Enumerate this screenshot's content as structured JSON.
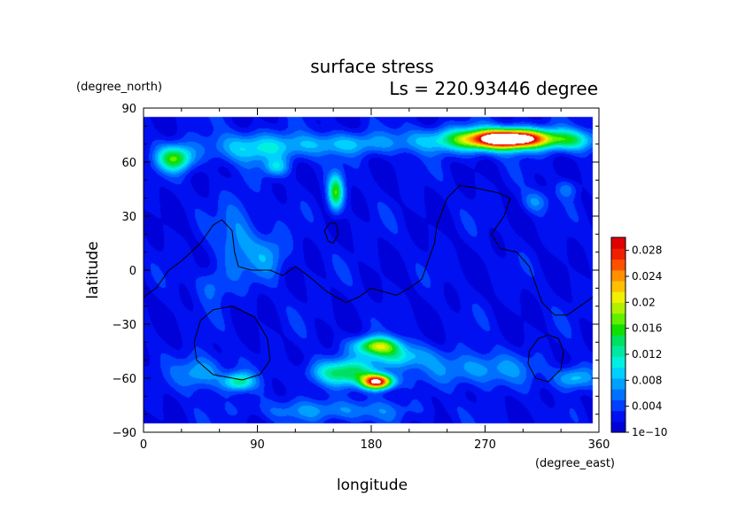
{
  "chart_data": {
    "type": "heatmap",
    "title": "surface stress",
    "subtitle": "Ls = 220.93446 degree",
    "xlabel": "longitude",
    "ylabel": "latitude",
    "x_unit": "(degree_east)",
    "y_unit": "(degree_north)",
    "xlim": [
      0,
      360
    ],
    "ylim": [
      -90,
      90
    ],
    "x_ticks": [
      0,
      90,
      180,
      270,
      360
    ],
    "y_ticks": [
      -90,
      -60,
      -30,
      0,
      30,
      60,
      90
    ],
    "x_tick_labels": [
      "0",
      "90",
      "180",
      "270",
      "360"
    ],
    "y_tick_labels": [
      "−90",
      "−60",
      "−30",
      "0",
      "30",
      "60",
      "90"
    ],
    "data_extent": {
      "lon": [
        0,
        355
      ],
      "lat": [
        -85,
        85
      ]
    },
    "background_value": 0.002,
    "features": [
      {
        "name": "north-polar-high",
        "lon": 290,
        "lat": 73,
        "slon": 32,
        "slat": 5,
        "amp": 0.03
      },
      {
        "name": "north-polar-band",
        "lon": 265,
        "lat": 72,
        "slon": 55,
        "slat": 7,
        "amp": 0.011
      },
      {
        "name": "north-polar-east",
        "lon": 340,
        "lat": 72,
        "slon": 18,
        "slat": 6,
        "amp": 0.008
      },
      {
        "name": "nw-patch",
        "lon": 25,
        "lat": 62,
        "slon": 14,
        "slat": 7,
        "amp": 0.014
      },
      {
        "name": "north-band-1",
        "lon": 90,
        "lat": 68,
        "slon": 40,
        "slat": 8,
        "amp": 0.008
      },
      {
        "name": "north-band-2",
        "lon": 160,
        "lat": 70,
        "slon": 40,
        "slat": 6,
        "amp": 0.006
      },
      {
        "name": "north-band-3",
        "lon": 105,
        "lat": 57,
        "slon": 10,
        "slat": 5,
        "amp": 0.007
      },
      {
        "name": "mid-north-streak",
        "lon": 152,
        "lat": 43,
        "slon": 6,
        "slat": 10,
        "amp": 0.014
      },
      {
        "name": "west-blob",
        "lon": 75,
        "lat": 18,
        "slon": 16,
        "slat": 22,
        "amp": 0.005
      },
      {
        "name": "equator-blob",
        "lon": 100,
        "lat": 8,
        "slon": 14,
        "slat": 12,
        "amp": 0.005
      },
      {
        "name": "equator-west",
        "lon": 55,
        "lat": -8,
        "slon": 12,
        "slat": 10,
        "amp": 0.004
      },
      {
        "name": "ne-small",
        "lon": 310,
        "lat": 38,
        "slon": 10,
        "slat": 6,
        "amp": 0.005
      },
      {
        "name": "ne-small-2",
        "lon": 335,
        "lat": 45,
        "slon": 8,
        "slat": 5,
        "amp": 0.004
      },
      {
        "name": "south-high",
        "lon": 185,
        "lat": -62,
        "slon": 12,
        "slat": 4,
        "amp": 0.028
      },
      {
        "name": "south-band",
        "lon": 160,
        "lat": -57,
        "slon": 28,
        "slat": 7,
        "amp": 0.012
      },
      {
        "name": "south-mid",
        "lon": 185,
        "lat": -42,
        "slon": 18,
        "slat": 5,
        "amp": 0.016
      },
      {
        "name": "south-band-2",
        "lon": 200,
        "lat": -48,
        "slon": 25,
        "slat": 6,
        "amp": 0.008
      },
      {
        "name": "south-west",
        "lon": 75,
        "lat": -62,
        "slon": 12,
        "slat": 5,
        "amp": 0.011
      },
      {
        "name": "south-west-2",
        "lon": 45,
        "lat": -57,
        "slon": 18,
        "slat": 9,
        "amp": 0.007
      },
      {
        "name": "south-east",
        "lon": 265,
        "lat": -55,
        "slon": 40,
        "slat": 9,
        "amp": 0.006
      },
      {
        "name": "south-east-2",
        "lon": 340,
        "lat": -60,
        "slon": 15,
        "slat": 6,
        "amp": 0.008
      },
      {
        "name": "south-polar",
        "lon": 150,
        "lat": -78,
        "slon": 60,
        "slat": 6,
        "amp": 0.005
      }
    ],
    "topography_contours": [
      {
        "name": "continent-outline",
        "closed": false,
        "points": [
          [
            0,
            -15
          ],
          [
            10,
            -10
          ],
          [
            20,
            0
          ],
          [
            30,
            5
          ],
          [
            45,
            15
          ],
          [
            55,
            25
          ],
          [
            62,
            28
          ],
          [
            70,
            22
          ],
          [
            72,
            10
          ],
          [
            75,
            2
          ],
          [
            85,
            0
          ],
          [
            100,
            0
          ],
          [
            110,
            -3
          ],
          [
            120,
            2
          ],
          [
            130,
            -3
          ],
          [
            145,
            -12
          ],
          [
            160,
            -18
          ],
          [
            170,
            -15
          ],
          [
            180,
            -10
          ],
          [
            190,
            -12
          ],
          [
            200,
            -14
          ],
          [
            210,
            -10
          ],
          [
            220,
            -5
          ],
          [
            225,
            5
          ],
          [
            230,
            15
          ],
          [
            232,
            25
          ],
          [
            240,
            40
          ],
          [
            250,
            47
          ],
          [
            260,
            46
          ],
          [
            280,
            43
          ],
          [
            290,
            40
          ],
          [
            285,
            30
          ],
          [
            275,
            20
          ],
          [
            282,
            12
          ],
          [
            295,
            10
          ],
          [
            305,
            2
          ],
          [
            310,
            -8
          ],
          [
            315,
            -18
          ],
          [
            325,
            -25
          ],
          [
            335,
            -25
          ],
          [
            345,
            -20
          ],
          [
            355,
            -15
          ]
        ]
      },
      {
        "name": "south-west-crater",
        "closed": true,
        "points": [
          [
            40,
            -40
          ],
          [
            45,
            -28
          ],
          [
            55,
            -22
          ],
          [
            70,
            -20
          ],
          [
            88,
            -26
          ],
          [
            98,
            -38
          ],
          [
            100,
            -50
          ],
          [
            92,
            -58
          ],
          [
            78,
            -61
          ],
          [
            55,
            -58
          ],
          [
            42,
            -50
          ]
        ]
      },
      {
        "name": "south-east-crater",
        "closed": true,
        "points": [
          [
            305,
            -45
          ],
          [
            312,
            -38
          ],
          [
            320,
            -36
          ],
          [
            328,
            -38
          ],
          [
            332,
            -45
          ],
          [
            330,
            -55
          ],
          [
            320,
            -62
          ],
          [
            310,
            -60
          ],
          [
            304,
            -52
          ]
        ]
      },
      {
        "name": "small-north-ring",
        "closed": true,
        "points": [
          [
            143,
            22
          ],
          [
            147,
            26
          ],
          [
            152,
            26
          ],
          [
            154,
            20
          ],
          [
            150,
            15
          ],
          [
            146,
            16
          ]
        ]
      }
    ],
    "colorbar": {
      "min": 1e-10,
      "max": 0.03,
      "tick_values": [
        1e-10,
        0.004,
        0.008,
        0.012,
        0.016,
        0.02,
        0.024,
        0.028
      ],
      "tick_labels": [
        "1e−10",
        "0.004",
        "0.008",
        "0.012",
        "0.016",
        "0.02",
        "0.024",
        "0.028"
      ],
      "colors": [
        "#0000d8",
        "#0010f0",
        "#0040ff",
        "#0070ff",
        "#00a0ff",
        "#00d0ff",
        "#00f0e0",
        "#00e8a0",
        "#00e060",
        "#10e000",
        "#60f000",
        "#b0f000",
        "#f0f000",
        "#ffc000",
        "#ff9000",
        "#ff5000",
        "#f02000",
        "#e00000"
      ]
    },
    "grid": false,
    "legend_placement": "right"
  }
}
